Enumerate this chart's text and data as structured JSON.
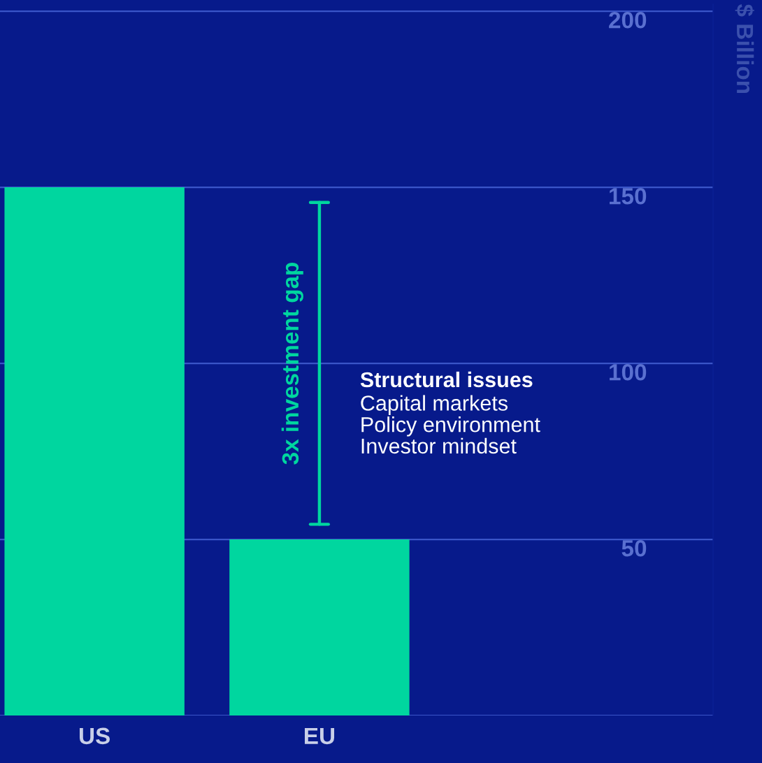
{
  "chart_data": {
    "type": "bar",
    "categories": [
      "US",
      "EU"
    ],
    "values": [
      150,
      50
    ],
    "color": "#00d69f",
    "ylabel": "$ Billion",
    "ylim": [
      0,
      202
    ],
    "yticks": [
      {
        "value": 0,
        "label": null
      },
      50,
      100,
      150,
      200
    ],
    "grid": "y",
    "legend": false,
    "annotations": [
      "3x investment gap",
      "Structural issues",
      "Capital markets\nPolicy environment\nInvestor mindset"
    ]
  }
}
